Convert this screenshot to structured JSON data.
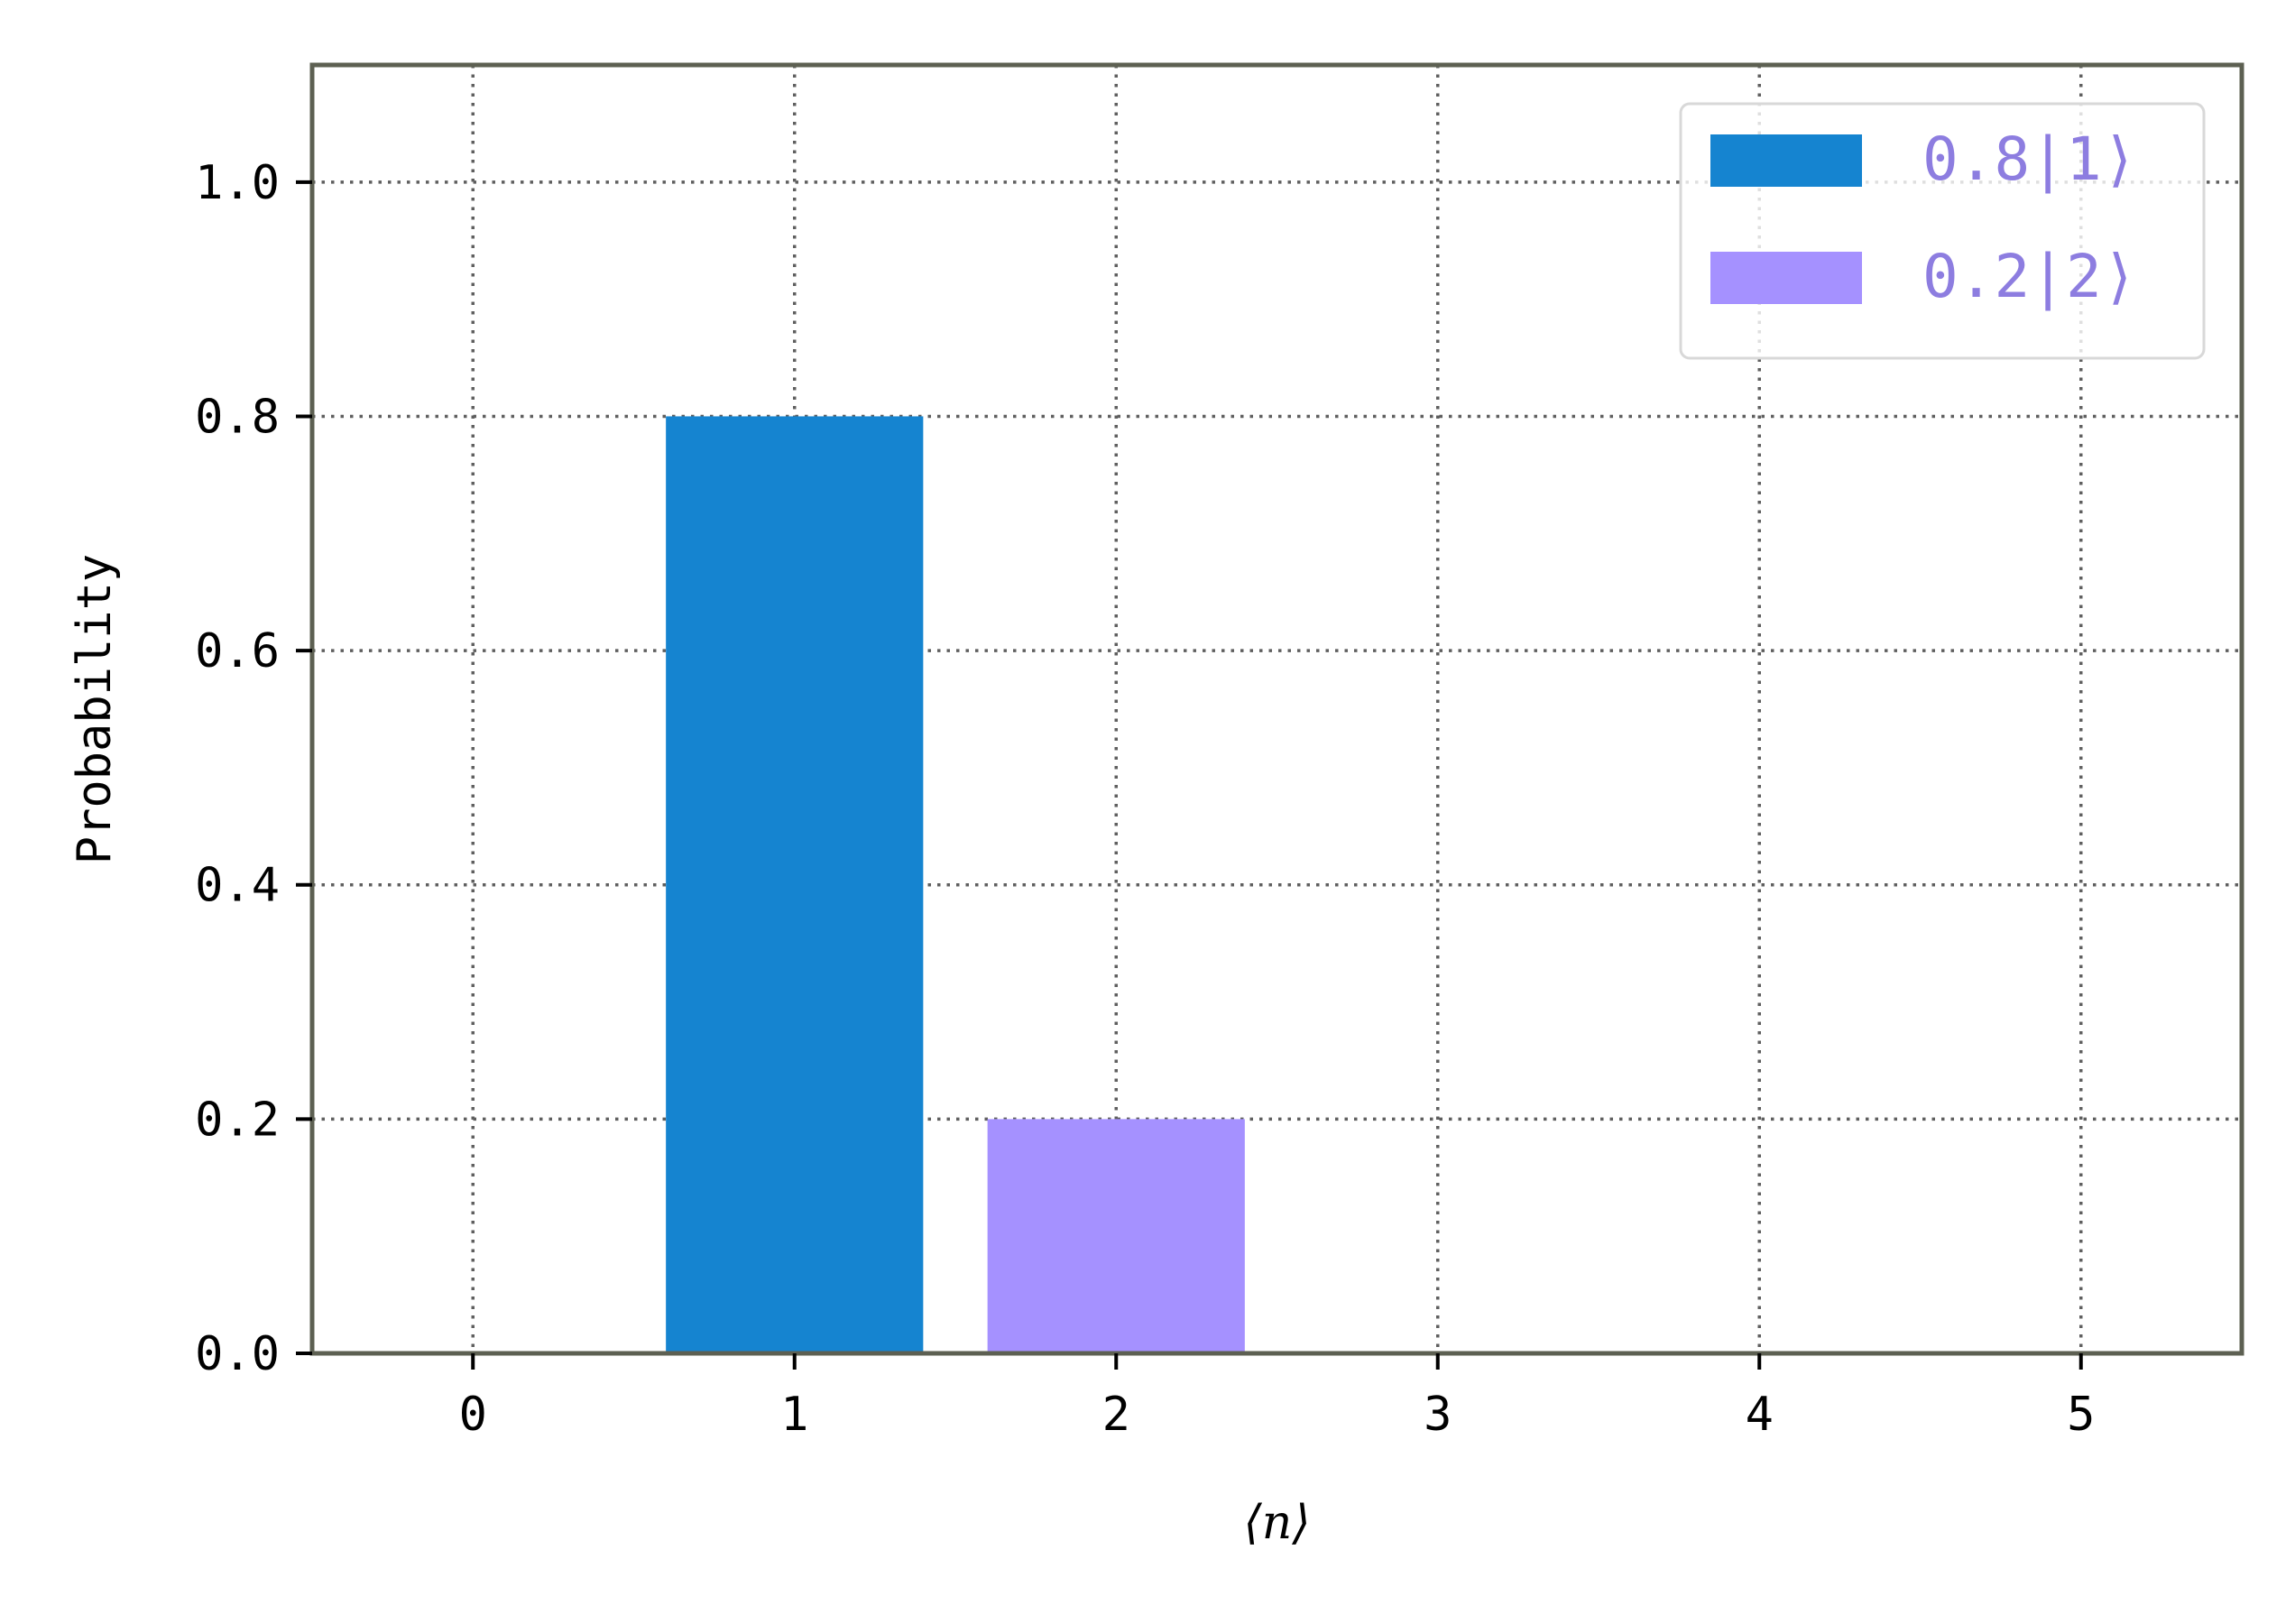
{
  "chart_data": {
    "type": "bar",
    "xlabel": "⟨n⟩",
    "ylabel": "Probability",
    "xlim": [
      -0.5,
      5.5
    ],
    "ylim": [
      0,
      1.1
    ],
    "x_ticks": [
      "0",
      "1",
      "2",
      "3",
      "4",
      "5"
    ],
    "y_ticks": [
      "0.0",
      "0.2",
      "0.4",
      "0.6",
      "0.8",
      "1.0"
    ],
    "grid": true,
    "legend_position": "top-right",
    "series": [
      {
        "name": "0.8|1⟩",
        "x": [
          1
        ],
        "values": [
          0.8
        ],
        "color": "#1584d0"
      },
      {
        "name": "0.2|2⟩",
        "x": [
          2
        ],
        "values": [
          0.2
        ],
        "color": "#a591ff"
      }
    ],
    "colors": {
      "frame": "#5d6052",
      "grid": "#5f5f5f",
      "legend_text": "#8d7de0"
    }
  }
}
